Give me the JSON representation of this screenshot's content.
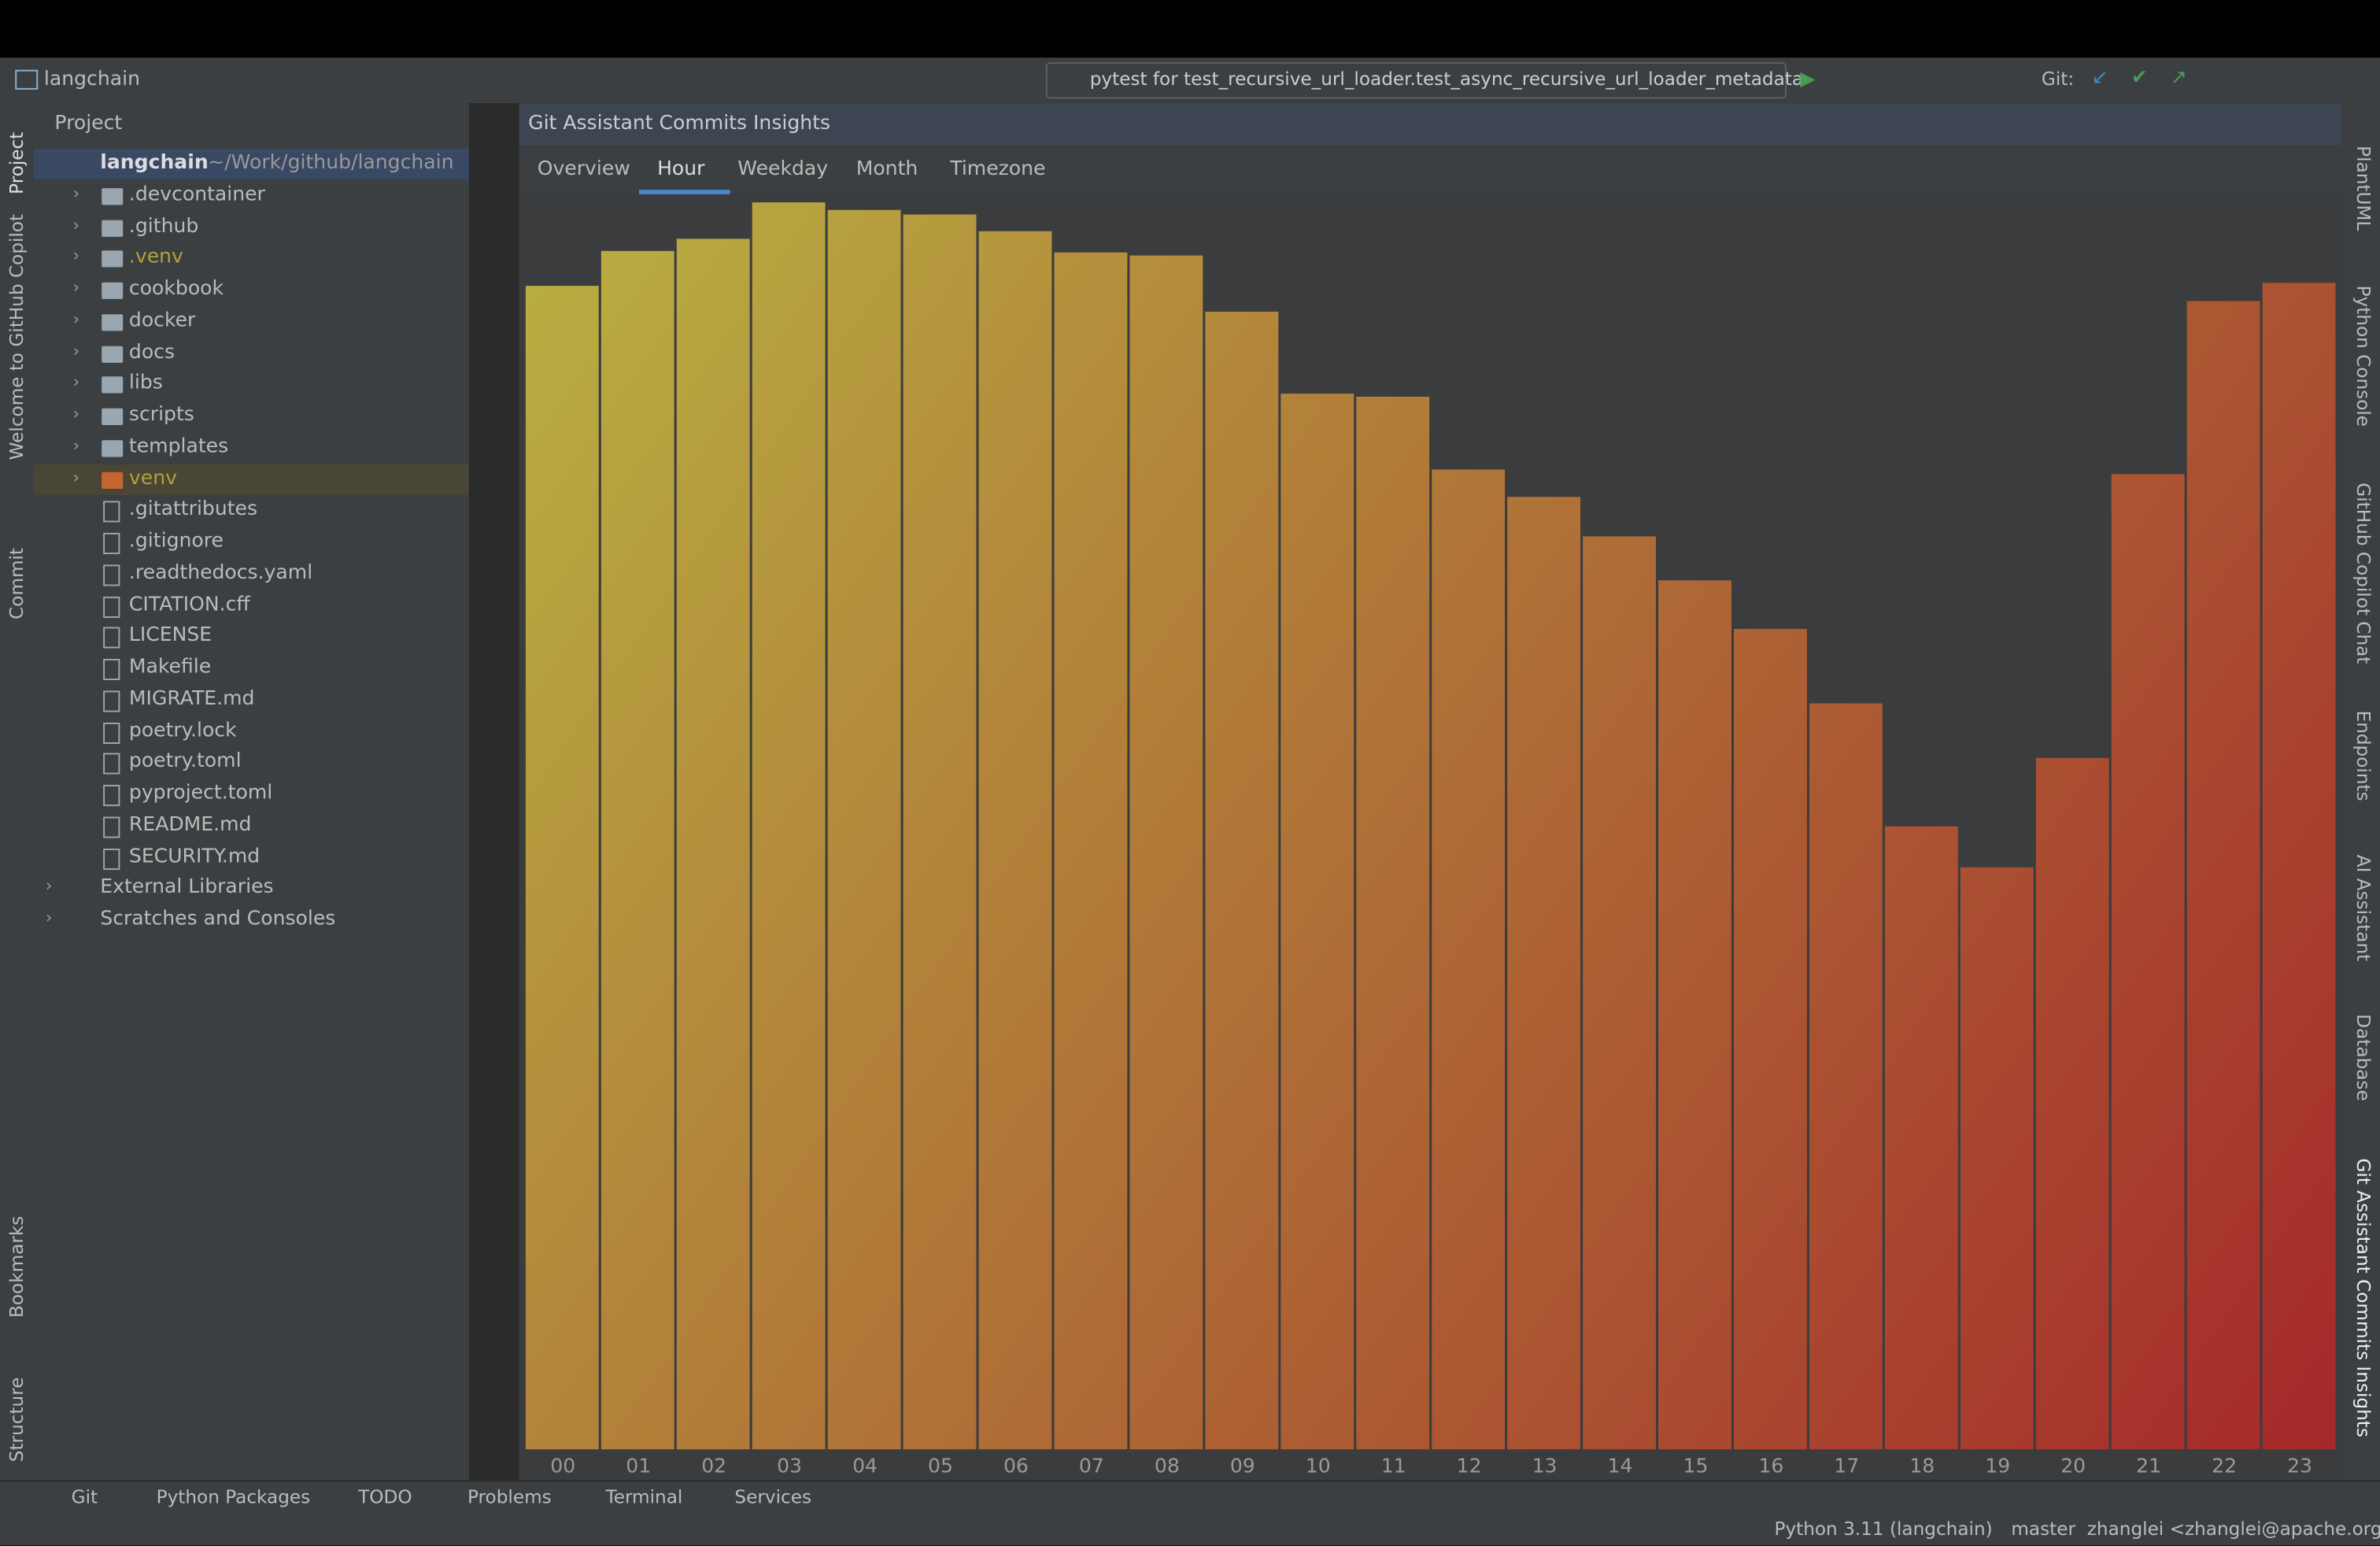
{
  "window": {
    "project_title": "langchain",
    "run_config": "pytest for test_recursive_url_loader.test_async_recursive_url_loader_metadata",
    "git_label": "Git:"
  },
  "left_stripe": [
    "Project",
    "Welcome to GitHub Copilot",
    "Commit",
    "Bookmarks",
    "Structure"
  ],
  "right_stripe": [
    "PlantUML",
    "Python Console",
    "GitHub Copilot Chat",
    "Endpoints",
    "AI Assistant",
    "Database",
    "Git Assistant Commits Insights"
  ],
  "project_panel": {
    "title": "Project",
    "root": {
      "name": "langchain",
      "path": "~/Work/github/langchain"
    },
    "folders": [
      ".devcontainer",
      ".github",
      ".venv",
      "cookbook",
      "docker",
      "docs",
      "libs",
      "scripts",
      "templates",
      "venv"
    ],
    "files": [
      ".gitattributes",
      ".gitignore",
      ".readthedocs.yaml",
      "CITATION.cff",
      "LICENSE",
      "Makefile",
      "MIGRATE.md",
      "poetry.lock",
      "poetry.toml",
      "pyproject.toml",
      "README.md",
      "SECURITY.md"
    ],
    "extra": [
      "External Libraries",
      "Scratches and Consoles"
    ]
  },
  "tool_window": {
    "title": "Git Assistant Commits Insights",
    "tabs": [
      "Overview",
      "Hour",
      "Weekday",
      "Month",
      "Timezone"
    ],
    "active_tab": 1
  },
  "chart_data": {
    "type": "bar",
    "categories": [
      "00",
      "01",
      "02",
      "03",
      "04",
      "05",
      "06",
      "07",
      "08",
      "09",
      "10",
      "11",
      "12",
      "13",
      "14",
      "15",
      "16",
      "17",
      "18",
      "19",
      "20",
      "21",
      "22",
      "23"
    ],
    "values": [
      767,
      790,
      798,
      822,
      817,
      814,
      803,
      789,
      787,
      750,
      696,
      694,
      646,
      628,
      602,
      573,
      541,
      492,
      411,
      384,
      456,
      643,
      757,
      769
    ],
    "gradient": [
      "#b9b142",
      "#a5282a"
    ]
  },
  "bottom_tabs": [
    "Git",
    "Python Packages",
    "TODO",
    "Problems",
    "Terminal",
    "Services"
  ],
  "status_bar": {
    "interpreter": "Python 3.11 (langchain)",
    "branch": "master",
    "user": "zhanglei <zhanglei@apache.org>"
  }
}
